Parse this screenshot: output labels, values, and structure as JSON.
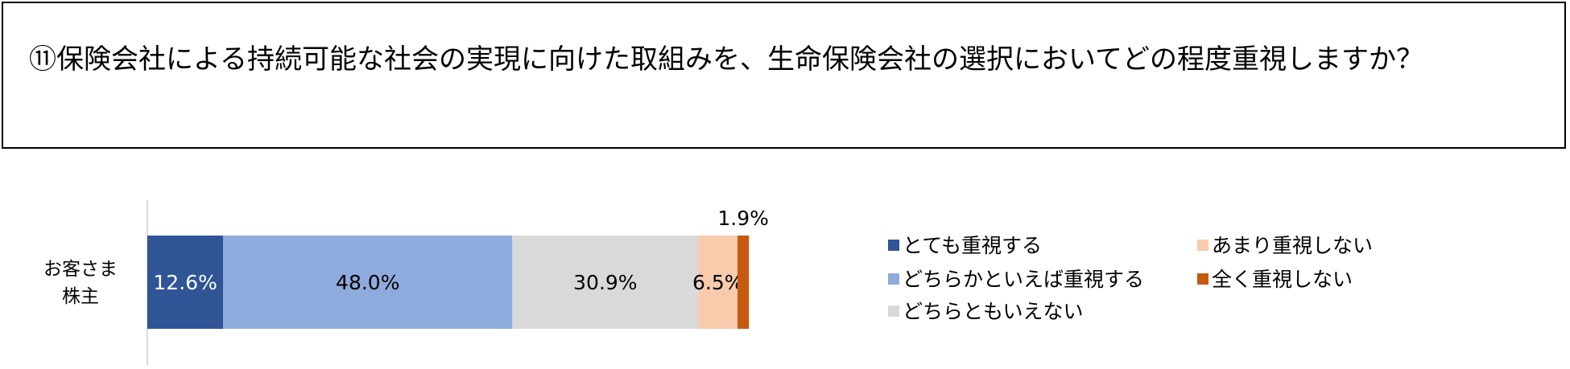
{
  "chart_data": {
    "type": "stacked_bar_h",
    "title": "⑪保険会社による持続可能な社会の実現に向けた取組みを、生命保険会社の選択においてどの程度重視しますか？",
    "categories": [
      "お客さま\n株主"
    ],
    "xlim": [
      0,
      100
    ],
    "legend": "right",
    "series": [
      {
        "name": "とても重視する",
        "color": "#2f5597",
        "values": [
          12.6
        ],
        "value_labels": [
          "12.6%"
        ]
      },
      {
        "name": "どちらかといえば重視する",
        "color": "#8faadc",
        "values": [
          48.0
        ],
        "value_labels": [
          "48.0%"
        ]
      },
      {
        "name": "どちらともいえない",
        "color": "#d9d9d9",
        "values": [
          30.9
        ],
        "value_labels": [
          "30.9%"
        ]
      },
      {
        "name": "あまり重視しない",
        "color": "#f8cbad",
        "values": [
          6.5
        ],
        "value_labels": [
          "6.5%"
        ]
      },
      {
        "name": "全く重視しない",
        "color": "#c55a11",
        "values": [
          1.9
        ],
        "value_labels": [
          "1.9%"
        ]
      }
    ]
  }
}
